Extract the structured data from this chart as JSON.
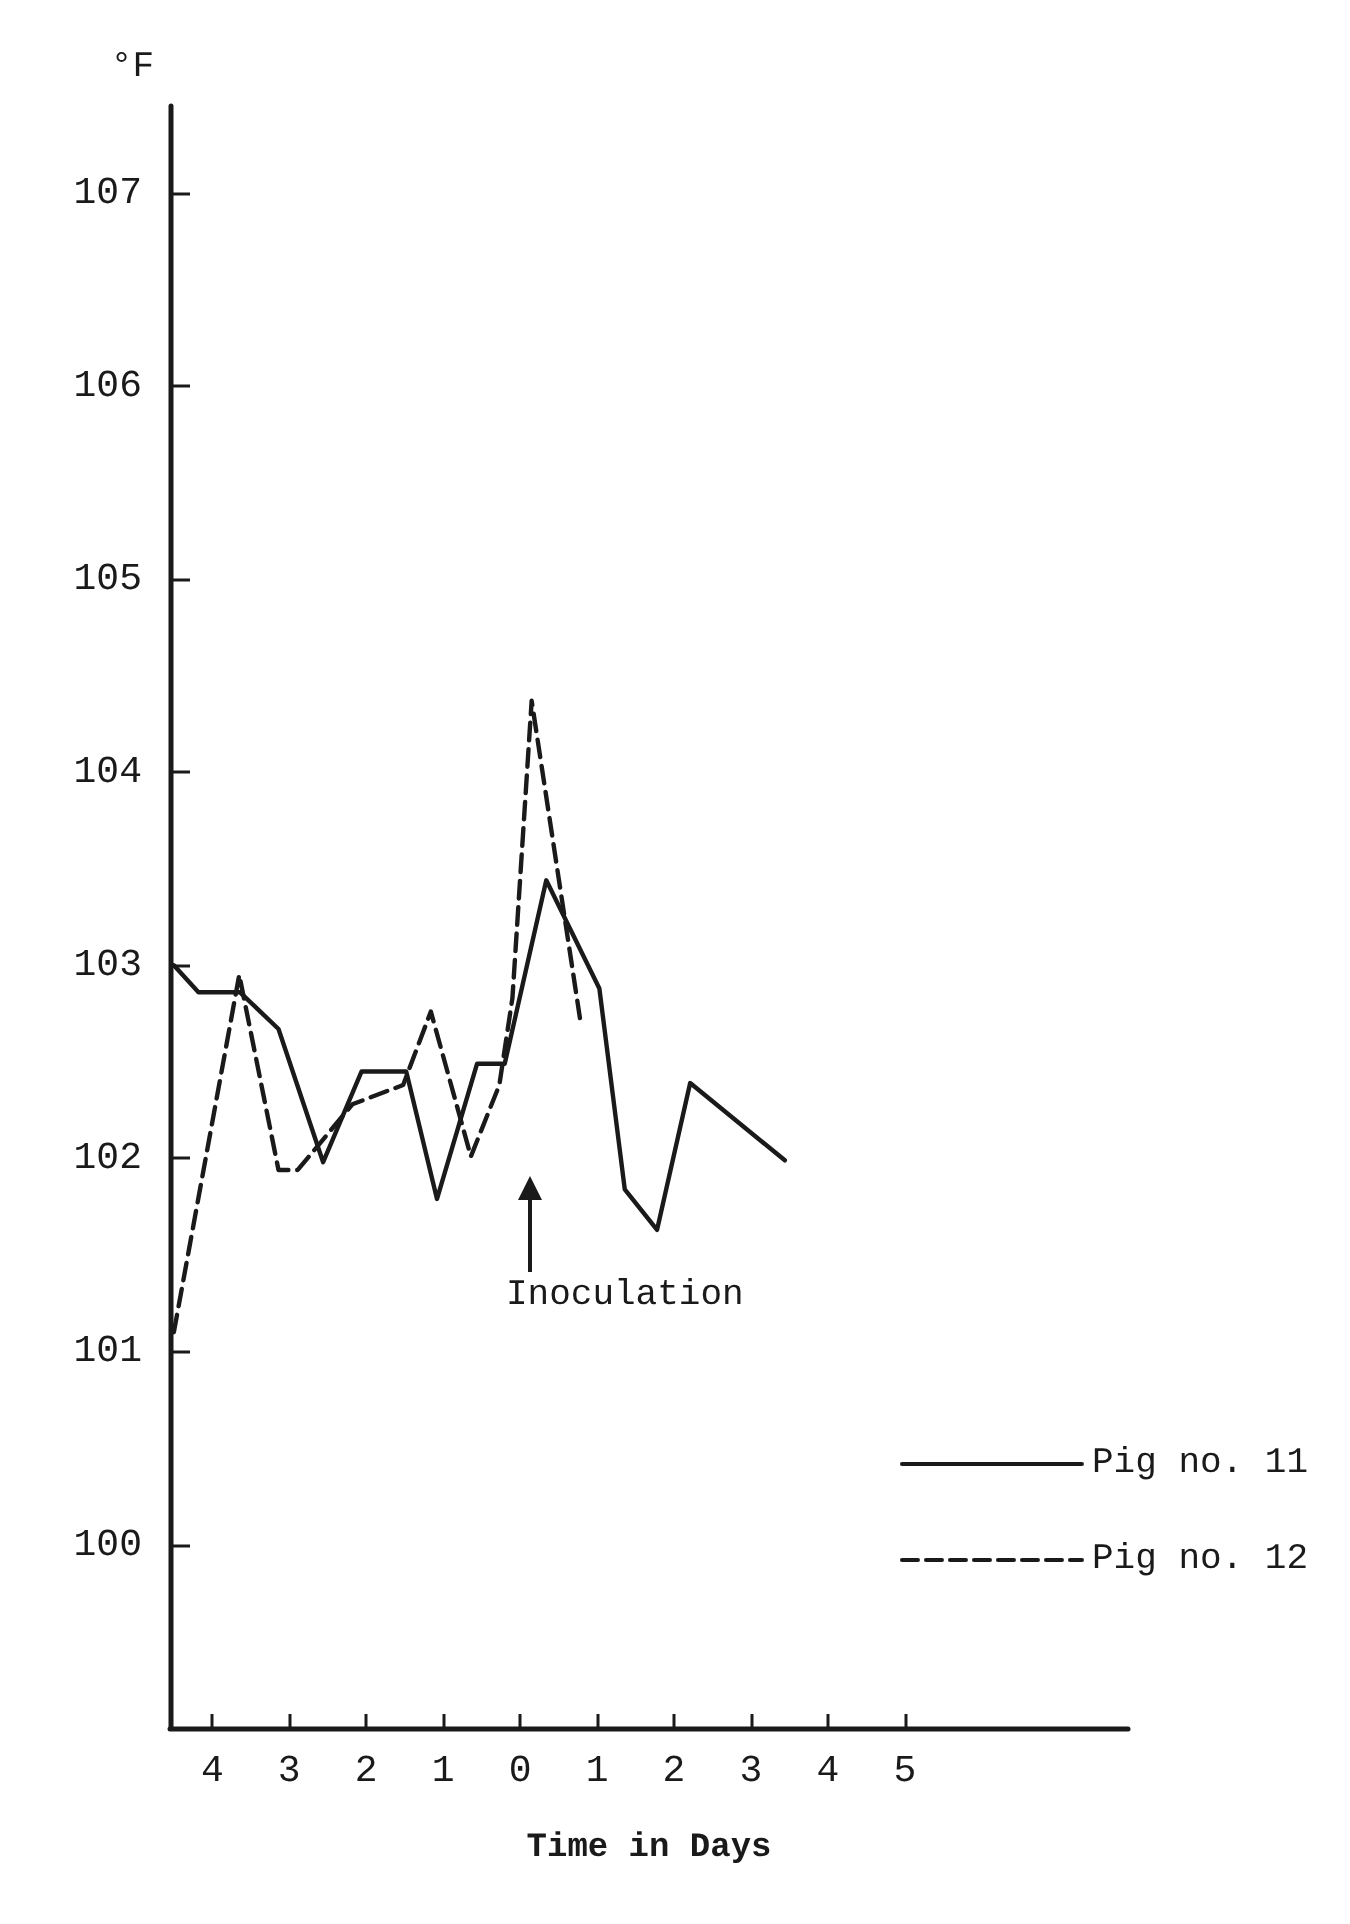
{
  "chart_data": {
    "type": "line",
    "xlabel": "Time in Days",
    "ylabel": "°F",
    "xlim": [
      -4.55,
      7.9
    ],
    "ylim": [
      99.05,
      107.45
    ],
    "xticks": [
      {
        "value": -4,
        "label": "4"
      },
      {
        "value": -3,
        "label": "3"
      },
      {
        "value": -2,
        "label": "2"
      },
      {
        "value": -1,
        "label": "1"
      },
      0,
      1,
      2,
      3,
      4,
      5
    ],
    "yticks": [
      100,
      101,
      102,
      103,
      104,
      105,
      106,
      107
    ],
    "grid": false,
    "legend": "bottom right",
    "marker": "none",
    "series": [
      {
        "name": "Pig no. 11",
        "color": "#1a1a1a",
        "line_style": "solid",
        "x": [
          -4.5,
          -4.18,
          -3.64,
          -3.14,
          -2.56,
          -2.06,
          -1.48,
          -1.08,
          -0.56,
          -0.2,
          0.34,
          1.03,
          1.36,
          1.78,
          2.21,
          3.44
        ],
        "values": [
          103.0,
          102.86,
          102.86,
          102.67,
          101.98,
          102.45,
          102.45,
          101.79,
          102.49,
          102.49,
          103.44,
          102.88,
          101.84,
          101.63,
          102.39,
          101.99
        ]
      },
      {
        "name": "Pig no. 12",
        "color": "#1a1a1a",
        "line_style": "dashed",
        "x": [
          -4.5,
          -3.65,
          -3.14,
          -2.89,
          -2.18,
          -1.52,
          -1.16,
          -0.64,
          -0.27,
          -0.1,
          0.15,
          0.78
        ],
        "values": [
          101.1,
          102.95,
          101.94,
          101.94,
          102.28,
          102.38,
          102.76,
          102.01,
          102.38,
          102.83,
          104.37,
          102.72
        ]
      }
    ],
    "annotations": [
      "Inoculation"
    ]
  }
}
